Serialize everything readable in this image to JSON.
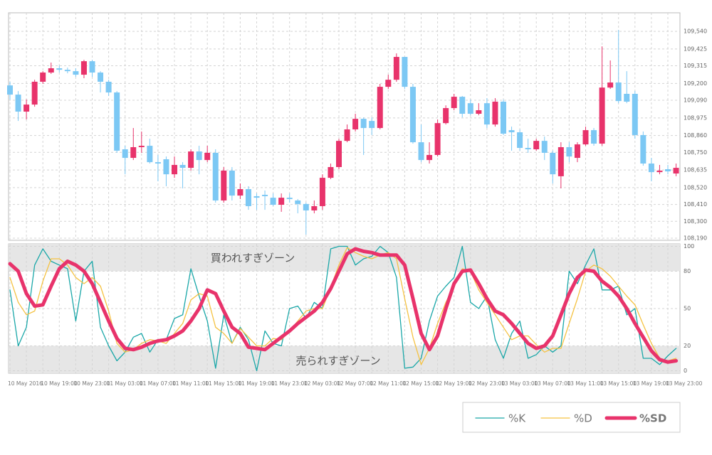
{
  "chart_data": [
    {
      "type": "candlestick",
      "open": [
        109.187,
        109.127,
        109.016,
        109.062,
        109.211,
        109.271,
        109.299,
        109.289,
        109.28,
        109.257,
        109.345,
        109.271,
        109.211,
        109.141,
        108.77,
        108.714,
        108.784,
        108.793,
        108.686,
        108.705,
        108.607,
        108.668,
        108.649,
        108.756,
        108.7,
        108.747,
        108.436,
        108.631,
        108.468,
        108.51,
        108.464,
        108.473,
        108.454,
        108.408,
        108.454,
        108.436,
        108.413,
        108.371,
        108.399,
        108.584,
        108.654,
        108.825,
        108.9,
        108.969,
        108.955,
        108.909,
        109.178,
        109.224,
        109.373,
        109.178,
        108.816,
        108.7,
        108.733,
        108.941,
        109.039,
        109.113,
        109.071,
        109.002,
        109.071,
        108.932,
        109.081,
        108.895,
        108.881,
        108.779,
        108.77,
        108.825,
        108.747,
        108.594,
        108.784,
        108.714,
        108.802,
        108.895,
        108.807,
        109.173,
        109.206,
        109.132,
        109.132,
        108.863,
        108.677,
        108.621,
        108.64,
        108.612
      ],
      "high": [
        109.211,
        109.15,
        109.095,
        109.224,
        109.28,
        109.336,
        109.317,
        109.303,
        109.299,
        109.354,
        109.354,
        109.28,
        109.224,
        109.15,
        108.793,
        108.909,
        108.886,
        108.839,
        108.733,
        108.723,
        108.723,
        108.686,
        108.77,
        108.793,
        108.793,
        108.77,
        108.654,
        108.654,
        108.547,
        108.529,
        108.482,
        108.501,
        108.482,
        108.482,
        108.482,
        108.445,
        108.422,
        108.436,
        108.607,
        108.677,
        108.839,
        108.932,
        109.002,
        108.978,
        108.978,
        109.197,
        109.257,
        109.396,
        109.373,
        109.197,
        108.932,
        108.816,
        108.965,
        109.057,
        109.132,
        109.118,
        109.095,
        109.071,
        109.104,
        109.104,
        109.095,
        108.918,
        108.9,
        108.839,
        108.839,
        108.853,
        108.761,
        108.816,
        108.816,
        108.816,
        108.918,
        108.909,
        109.442,
        109.35,
        109.549,
        109.28,
        109.15,
        108.886,
        108.714,
        108.668,
        108.668,
        108.677
      ],
      "low": [
        109.095,
        108.955,
        108.965,
        109.048,
        109.197,
        109.262,
        109.271,
        109.266,
        109.243,
        109.234,
        109.243,
        109.141,
        109.118,
        108.747,
        108.607,
        108.7,
        108.747,
        108.677,
        108.561,
        108.529,
        108.584,
        108.515,
        108.631,
        108.607,
        108.686,
        108.422,
        108.422,
        108.436,
        108.445,
        108.375,
        108.375,
        108.375,
        108.399,
        108.362,
        108.422,
        108.352,
        108.213,
        108.352,
        108.375,
        108.575,
        108.64,
        108.816,
        108.886,
        108.733,
        108.863,
        108.9,
        109.164,
        109.211,
        109.164,
        108.807,
        108.686,
        108.677,
        108.723,
        108.932,
        109.025,
        108.978,
        108.992,
        108.992,
        108.909,
        108.918,
        108.863,
        108.761,
        108.761,
        108.747,
        108.761,
        108.7,
        108.547,
        108.515,
        108.686,
        108.686,
        108.793,
        108.793,
        108.793,
        109.164,
        109.071,
        109.071,
        108.839,
        108.663,
        108.561,
        108.607,
        108.607,
        108.594
      ],
      "close": [
        109.127,
        109.016,
        109.062,
        109.211,
        109.271,
        109.299,
        109.289,
        109.28,
        109.257,
        109.345,
        109.271,
        109.211,
        109.141,
        108.761,
        108.714,
        108.784,
        108.793,
        108.686,
        108.677,
        108.607,
        108.668,
        108.649,
        108.756,
        108.7,
        108.747,
        108.436,
        108.631,
        108.468,
        108.51,
        108.399,
        108.454,
        108.464,
        108.408,
        108.454,
        108.445,
        108.413,
        108.371,
        108.399,
        108.584,
        108.654,
        108.825,
        108.9,
        108.969,
        108.909,
        108.909,
        109.178,
        109.224,
        109.373,
        109.178,
        108.816,
        108.7,
        108.733,
        108.941,
        109.039,
        109.113,
        109.002,
        109.002,
        109.025,
        108.932,
        109.081,
        108.872,
        108.881,
        108.779,
        108.77,
        108.825,
        108.747,
        108.607,
        108.784,
        108.723,
        108.802,
        108.895,
        108.807,
        109.173,
        109.206,
        109.085,
        109.081,
        108.863,
        108.677,
        108.621,
        108.631,
        108.626,
        108.649
      ],
      "up_color": "#e8336b",
      "down_color": "#7cc8f4",
      "ylim": [
        108.176,
        109.661
      ],
      "yticks": [
        {
          "value": 108.19,
          "label": "108,190"
        },
        {
          "value": 108.3,
          "label": "108,300"
        },
        {
          "value": 108.41,
          "label": "108,410"
        },
        {
          "value": 108.52,
          "label": "108,520"
        },
        {
          "value": 108.635,
          "label": "108,635"
        },
        {
          "value": 108.75,
          "label": "108,750"
        },
        {
          "value": 108.86,
          "label": "108,860"
        },
        {
          "value": 108.975,
          "label": "108,975"
        },
        {
          "value": 109.09,
          "label": "109,090"
        },
        {
          "value": 109.2,
          "label": "109,200"
        },
        {
          "value": 109.315,
          "label": "109,315"
        },
        {
          "value": 109.425,
          "label": "109,425"
        },
        {
          "value": 109.54,
          "label": "109,540"
        }
      ],
      "grid": true
    },
    {
      "type": "line",
      "categories": [
        "10 May 2016",
        null,
        null,
        null,
        "10 May 19:00",
        null,
        null,
        null,
        "10 May 23:00",
        null,
        null,
        null,
        "11 May 03:00",
        null,
        null,
        null,
        "11 May 07:00",
        null,
        null,
        null,
        "11 May 11:00",
        null,
        null,
        null,
        "11 May 15:00",
        null,
        null,
        null,
        "11 May 19:00",
        null,
        null,
        null,
        "11 May 23:00",
        null,
        null,
        null,
        "12 May 03:00",
        null,
        null,
        null,
        "12 May 07:00",
        null,
        null,
        null,
        "12 May 11:00",
        null,
        null,
        null,
        "12 May 15:00",
        null,
        null,
        null,
        "12 May 19:00",
        null,
        null,
        null,
        "12 May 23:00",
        null,
        null,
        null,
        "13 May 03:00",
        null,
        null,
        null,
        "13 May 07:00",
        null,
        null,
        null,
        "13 May 11:00",
        null,
        null,
        null,
        "13 May 15:00",
        null,
        null,
        null,
        "13 May 19:00",
        null,
        null,
        null,
        "13 May 23:00",
        null
      ],
      "series": [
        {
          "name": "%K",
          "color": "#1aa7a8",
          "width": 1.3,
          "values": [
            65,
            20,
            35,
            85,
            98,
            88,
            85,
            82,
            40,
            80,
            88,
            35,
            20,
            8,
            15,
            27,
            30,
            15,
            25,
            25,
            42,
            45,
            82,
            60,
            40,
            2,
            45,
            22,
            35,
            25,
            0,
            32,
            22,
            20,
            50,
            52,
            42,
            55,
            50,
            98,
            100,
            100,
            85,
            90,
            92,
            100,
            95,
            75,
            2,
            3,
            10,
            40,
            60,
            68,
            75,
            100,
            55,
            50,
            60,
            25,
            10,
            30,
            40,
            10,
            13,
            20,
            15,
            20,
            80,
            70,
            85,
            98,
            65,
            65,
            68,
            45,
            50,
            10,
            10,
            5,
            12,
            18
          ]
        },
        {
          "name": "%D",
          "color": "#f5c242",
          "width": 1.3,
          "values": [
            75,
            55,
            45,
            48,
            72,
            90,
            90,
            85,
            75,
            70,
            75,
            68,
            48,
            22,
            15,
            17,
            22,
            25,
            24,
            22,
            30,
            38,
            57,
            62,
            60,
            35,
            30,
            22,
            34,
            27,
            20,
            20,
            26,
            25,
            32,
            40,
            48,
            50,
            50,
            67,
            85,
            99,
            95,
            92,
            90,
            93,
            95,
            90,
            58,
            27,
            5,
            18,
            38,
            55,
            68,
            82,
            80,
            65,
            55,
            45,
            35,
            25,
            28,
            28,
            21,
            15,
            18,
            18,
            38,
            58,
            80,
            85,
            82,
            76,
            68,
            60,
            53,
            37,
            22,
            10,
            8,
            10
          ]
        },
        {
          "name": "%SD",
          "color": "#e8336b",
          "width": 5,
          "values": [
            86,
            80,
            62,
            52,
            53,
            68,
            82,
            88,
            85,
            80,
            70,
            55,
            40,
            26,
            18,
            17,
            19,
            22,
            24,
            25,
            28,
            32,
            40,
            50,
            65,
            62,
            48,
            35,
            30,
            19,
            18,
            17,
            22,
            27,
            32,
            38,
            43,
            48,
            55,
            66,
            80,
            94,
            98,
            96,
            95,
            93,
            93,
            93,
            85,
            58,
            30,
            17,
            28,
            50,
            70,
            80,
            81,
            70,
            58,
            48,
            45,
            38,
            30,
            22,
            18,
            20,
            28,
            45,
            62,
            75,
            81,
            80,
            72,
            67,
            60,
            50,
            38,
            27,
            16,
            9,
            7,
            8
          ]
        }
      ],
      "zones": [
        {
          "label": "買われすぎゾーン",
          "from": 80
        },
        {
          "label": "売られすぎゾーン",
          "to": 20
        }
      ],
      "ylim": [
        -2,
        102
      ],
      "yticks": [
        0,
        20,
        50,
        80,
        100
      ],
      "grid": true
    }
  ]
}
